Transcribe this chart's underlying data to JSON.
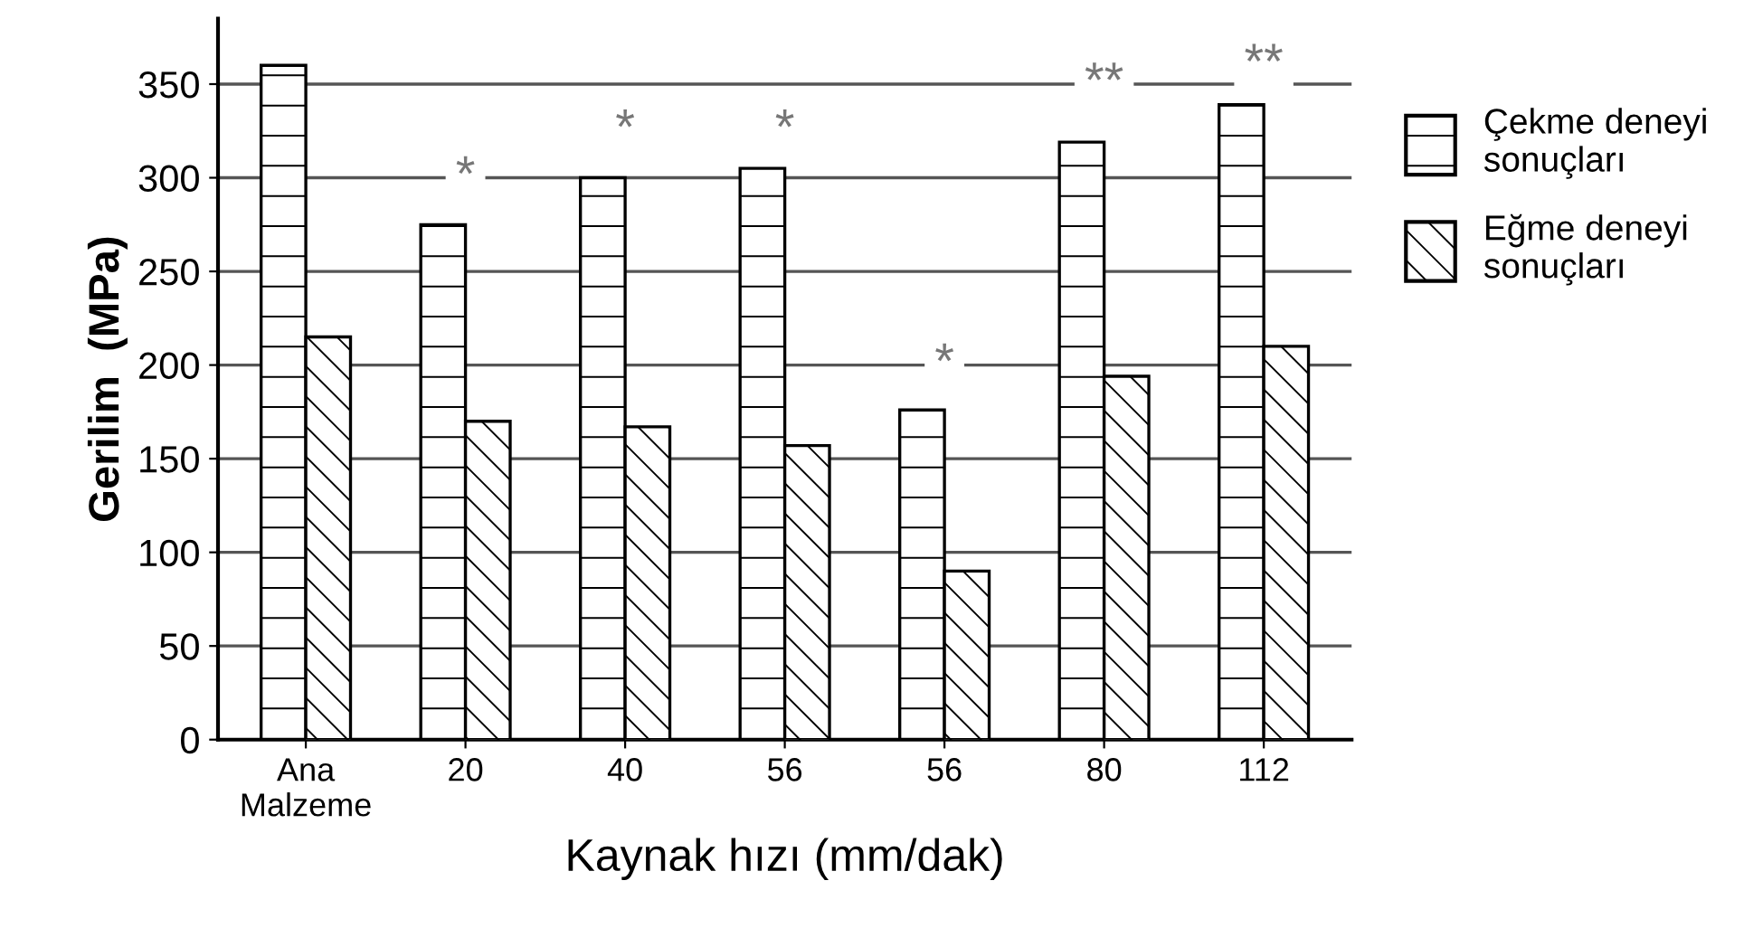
{
  "chart_data": {
    "type": "bar",
    "xlabel": "Kaynak hızı (mm/dak)",
    "ylabel": "Gerilim  (MPa)",
    "categories": [
      "Ana Malzeme",
      "20",
      "40",
      "56",
      "56",
      "80",
      "112"
    ],
    "series": [
      {
        "name": "Çekme deneyi sonuçları",
        "color": "#000000",
        "values": [
          360,
          275,
          300,
          305,
          176,
          319,
          339
        ]
      },
      {
        "name": "Eğme deneyi sonuçları",
        "color": "#000000",
        "values": [
          215,
          170,
          167,
          157,
          90,
          194,
          210
        ]
      }
    ],
    "ylim": [
      0,
      385
    ],
    "yticks": [
      0,
      50,
      100,
      150,
      200,
      250,
      300,
      350
    ],
    "grid": "y",
    "legend": "right",
    "annotations": [
      {
        "text": "*",
        "x": "20",
        "y": 300
      },
      {
        "text": "*",
        "x": "40",
        "y": 325
      },
      {
        "text": "*",
        "x": "56",
        "y": 325
      },
      {
        "text": "*",
        "x": "56",
        "y": 200
      },
      {
        "text": "**",
        "x": "80",
        "y": 350
      },
      {
        "text": "**",
        "x": "112",
        "y": 360
      }
    ]
  }
}
